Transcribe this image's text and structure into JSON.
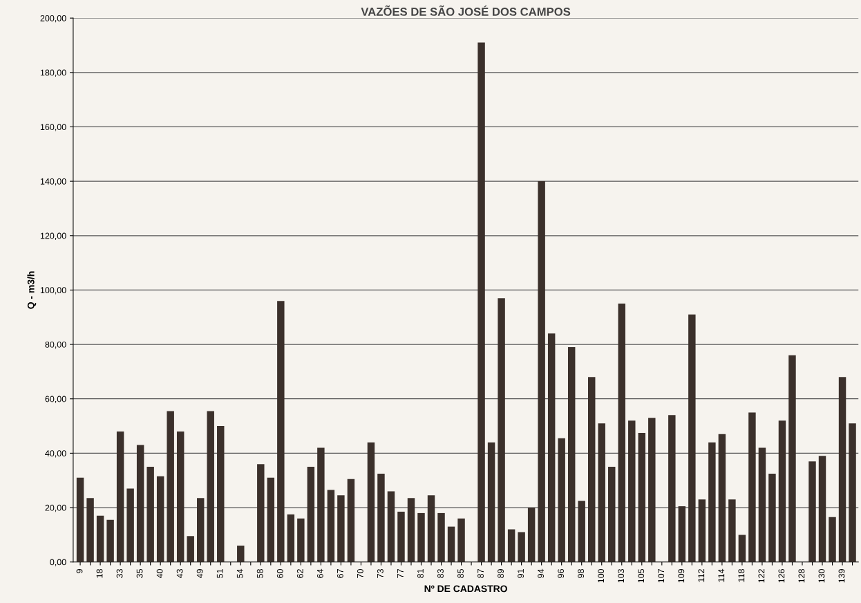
{
  "chart_data": {
    "type": "bar",
    "title": "VAZÕES DE SÃO JOSÉ DOS CAMPOS",
    "xlabel": "Nº DE CADASTRO",
    "ylabel": "Q - m3/h",
    "categories": [
      "9",
      null,
      "18",
      null,
      "33",
      null,
      "35",
      null,
      "40",
      null,
      "43",
      null,
      "49",
      null,
      "51",
      null,
      "54",
      null,
      "58",
      null,
      "60",
      null,
      "62",
      null,
      "64",
      null,
      "67",
      null,
      "70",
      null,
      "73",
      null,
      "77",
      null,
      "81",
      null,
      "83",
      null,
      "85",
      null,
      "87",
      null,
      "89",
      null,
      "91",
      null,
      "94",
      null,
      "96",
      null,
      "98",
      null,
      "100",
      null,
      "103",
      null,
      "105",
      null,
      "107",
      null,
      "109",
      null,
      "112",
      null,
      "114",
      null,
      "118",
      null,
      "122",
      null,
      "126",
      null,
      "128",
      null,
      "130",
      null,
      "139",
      null
    ],
    "values": [
      31,
      23.5,
      17,
      15.5,
      48,
      27,
      43,
      35,
      31.5,
      55.5,
      48,
      9.5,
      23.5,
      55.5,
      50,
      null,
      6,
      null,
      36,
      31,
      96,
      17.5,
      16,
      35,
      42,
      26.5,
      24.5,
      30.5,
      null,
      44,
      32.5,
      26,
      18.5,
      23.5,
      18,
      24.5,
      18,
      13,
      16,
      null,
      191,
      44,
      97,
      12,
      11,
      20,
      140,
      84,
      45.5,
      79,
      22.5,
      68,
      51,
      35,
      95,
      52,
      47.5,
      53,
      null,
      54,
      20.5,
      91,
      23,
      44,
      47,
      23,
      10,
      55,
      42,
      32.5,
      52,
      76,
      null,
      37,
      39,
      16.5,
      68,
      51
    ],
    "color": "#3b302b",
    "ylim": [
      0,
      200
    ],
    "yticks": [
      {
        "value": 0,
        "label": "0,00"
      },
      {
        "value": 20,
        "label": "20,00"
      },
      {
        "value": 40,
        "label": "40,00"
      },
      {
        "value": 60,
        "label": "60,00"
      },
      {
        "value": 80,
        "label": "80,00"
      },
      {
        "value": 100,
        "label": "100,00"
      },
      {
        "value": 120,
        "label": "120,00"
      },
      {
        "value": 140,
        "label": "140,00"
      },
      {
        "value": 160,
        "label": "160,00"
      },
      {
        "value": 180,
        "label": "180,00"
      },
      {
        "value": 200,
        "label": "200,00"
      }
    ],
    "grid": "y"
  }
}
